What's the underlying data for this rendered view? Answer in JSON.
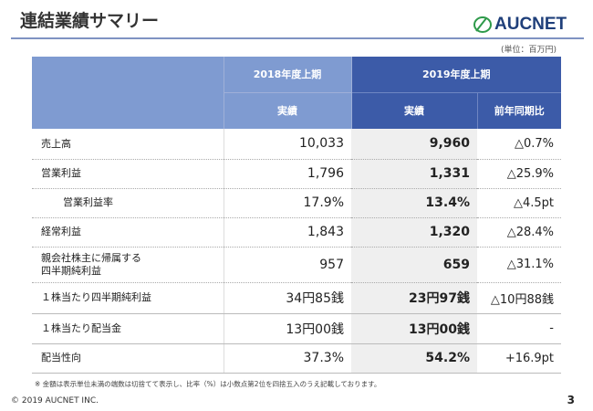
{
  "header": {
    "title": "連結業績サマリー",
    "logo": "AUCNET",
    "unit": "(単位：百万円)"
  },
  "table": {
    "col_2018": "2018年度上期",
    "col_2019": "2019年度上期",
    "sub_2018": "実績",
    "sub_2019": "実績",
    "sub_yoy": "前年同期比",
    "rows": [
      {
        "label": "売上高",
        "v2018": "10,033",
        "v2019": "9,960",
        "yoy": "△0.7%"
      },
      {
        "label": "営業利益",
        "v2018": "1,796",
        "v2019": "1,331",
        "yoy": "△25.9%"
      },
      {
        "label": "営業利益率",
        "v2018": "17.9%",
        "v2019": "13.4%",
        "yoy": "△4.5pt"
      },
      {
        "label": "経常利益",
        "v2018": "1,843",
        "v2019": "1,320",
        "yoy": "△28.4%"
      },
      {
        "label": "親会社株主に帰属する\n四半期純利益",
        "v2018": "957",
        "v2019": "659",
        "yoy": "△31.1%"
      },
      {
        "label": "１株当たり四半期純利益",
        "v2018": "34円85銭",
        "v2019": "23円97銭",
        "yoy": "△10円88銭"
      },
      {
        "label": "１株当たり配当金",
        "v2018": "13円00銭",
        "v2019": "13円00銭",
        "yoy": "-"
      },
      {
        "label": "配当性向",
        "v2018": "37.3%",
        "v2019": "54.2%",
        "yoy": "+16.9pt"
      }
    ]
  },
  "footer": {
    "note": "※ 金額は表示単位未満の端数は切捨てて表示し、比率（%）は小数点第2位を四捨五入のうえ記載しております。",
    "copyright": "© 2019 AUCNET INC.",
    "page": "3"
  },
  "colors": {
    "header_light": "#7f9bd1",
    "header_dark": "#3c5ba8",
    "logo": "#1f3f7a"
  }
}
